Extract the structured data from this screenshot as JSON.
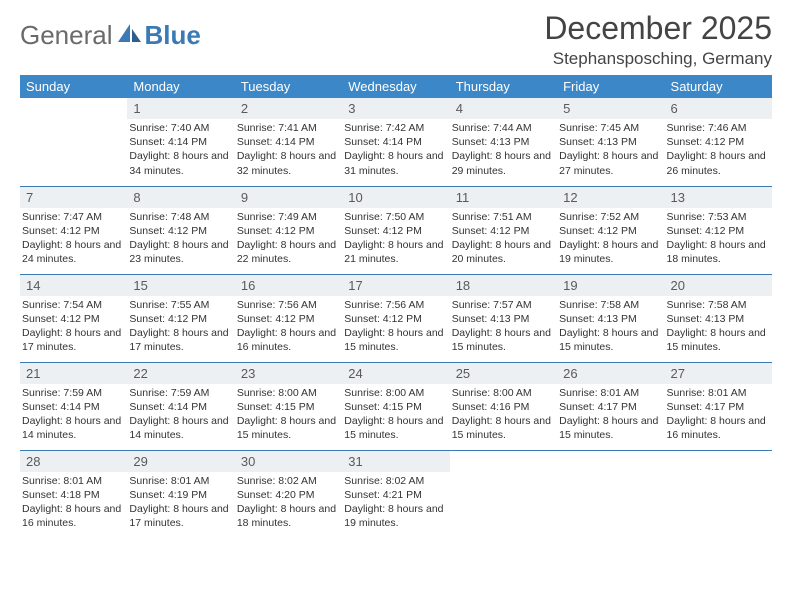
{
  "logo": {
    "part1": "General",
    "part2": "Blue"
  },
  "title": "December 2025",
  "location": "Stephansposching, Germany",
  "header_bg": "#3b87c8",
  "header_text_color": "#ffffff",
  "daynum_bg": "#edf0f2",
  "row_border_color": "#3b7ab5",
  "days_of_week": [
    "Sunday",
    "Monday",
    "Tuesday",
    "Wednesday",
    "Thursday",
    "Friday",
    "Saturday"
  ],
  "font_family": "Arial, Helvetica, sans-serif",
  "title_fontsize": 32,
  "location_fontsize": 17,
  "cell_fontsize": 10.5,
  "weeks": [
    [
      null,
      {
        "n": "1",
        "sr": "Sunrise: 7:40 AM",
        "ss": "Sunset: 4:14 PM",
        "dl": "Daylight: 8 hours and 34 minutes."
      },
      {
        "n": "2",
        "sr": "Sunrise: 7:41 AM",
        "ss": "Sunset: 4:14 PM",
        "dl": "Daylight: 8 hours and 32 minutes."
      },
      {
        "n": "3",
        "sr": "Sunrise: 7:42 AM",
        "ss": "Sunset: 4:14 PM",
        "dl": "Daylight: 8 hours and 31 minutes."
      },
      {
        "n": "4",
        "sr": "Sunrise: 7:44 AM",
        "ss": "Sunset: 4:13 PM",
        "dl": "Daylight: 8 hours and 29 minutes."
      },
      {
        "n": "5",
        "sr": "Sunrise: 7:45 AM",
        "ss": "Sunset: 4:13 PM",
        "dl": "Daylight: 8 hours and 27 minutes."
      },
      {
        "n": "6",
        "sr": "Sunrise: 7:46 AM",
        "ss": "Sunset: 4:12 PM",
        "dl": "Daylight: 8 hours and 26 minutes."
      }
    ],
    [
      {
        "n": "7",
        "sr": "Sunrise: 7:47 AM",
        "ss": "Sunset: 4:12 PM",
        "dl": "Daylight: 8 hours and 24 minutes."
      },
      {
        "n": "8",
        "sr": "Sunrise: 7:48 AM",
        "ss": "Sunset: 4:12 PM",
        "dl": "Daylight: 8 hours and 23 minutes."
      },
      {
        "n": "9",
        "sr": "Sunrise: 7:49 AM",
        "ss": "Sunset: 4:12 PM",
        "dl": "Daylight: 8 hours and 22 minutes."
      },
      {
        "n": "10",
        "sr": "Sunrise: 7:50 AM",
        "ss": "Sunset: 4:12 PM",
        "dl": "Daylight: 8 hours and 21 minutes."
      },
      {
        "n": "11",
        "sr": "Sunrise: 7:51 AM",
        "ss": "Sunset: 4:12 PM",
        "dl": "Daylight: 8 hours and 20 minutes."
      },
      {
        "n": "12",
        "sr": "Sunrise: 7:52 AM",
        "ss": "Sunset: 4:12 PM",
        "dl": "Daylight: 8 hours and 19 minutes."
      },
      {
        "n": "13",
        "sr": "Sunrise: 7:53 AM",
        "ss": "Sunset: 4:12 PM",
        "dl": "Daylight: 8 hours and 18 minutes."
      }
    ],
    [
      {
        "n": "14",
        "sr": "Sunrise: 7:54 AM",
        "ss": "Sunset: 4:12 PM",
        "dl": "Daylight: 8 hours and 17 minutes."
      },
      {
        "n": "15",
        "sr": "Sunrise: 7:55 AM",
        "ss": "Sunset: 4:12 PM",
        "dl": "Daylight: 8 hours and 17 minutes."
      },
      {
        "n": "16",
        "sr": "Sunrise: 7:56 AM",
        "ss": "Sunset: 4:12 PM",
        "dl": "Daylight: 8 hours and 16 minutes."
      },
      {
        "n": "17",
        "sr": "Sunrise: 7:56 AM",
        "ss": "Sunset: 4:12 PM",
        "dl": "Daylight: 8 hours and 15 minutes."
      },
      {
        "n": "18",
        "sr": "Sunrise: 7:57 AM",
        "ss": "Sunset: 4:13 PM",
        "dl": "Daylight: 8 hours and 15 minutes."
      },
      {
        "n": "19",
        "sr": "Sunrise: 7:58 AM",
        "ss": "Sunset: 4:13 PM",
        "dl": "Daylight: 8 hours and 15 minutes."
      },
      {
        "n": "20",
        "sr": "Sunrise: 7:58 AM",
        "ss": "Sunset: 4:13 PM",
        "dl": "Daylight: 8 hours and 15 minutes."
      }
    ],
    [
      {
        "n": "21",
        "sr": "Sunrise: 7:59 AM",
        "ss": "Sunset: 4:14 PM",
        "dl": "Daylight: 8 hours and 14 minutes."
      },
      {
        "n": "22",
        "sr": "Sunrise: 7:59 AM",
        "ss": "Sunset: 4:14 PM",
        "dl": "Daylight: 8 hours and 14 minutes."
      },
      {
        "n": "23",
        "sr": "Sunrise: 8:00 AM",
        "ss": "Sunset: 4:15 PM",
        "dl": "Daylight: 8 hours and 15 minutes."
      },
      {
        "n": "24",
        "sr": "Sunrise: 8:00 AM",
        "ss": "Sunset: 4:15 PM",
        "dl": "Daylight: 8 hours and 15 minutes."
      },
      {
        "n": "25",
        "sr": "Sunrise: 8:00 AM",
        "ss": "Sunset: 4:16 PM",
        "dl": "Daylight: 8 hours and 15 minutes."
      },
      {
        "n": "26",
        "sr": "Sunrise: 8:01 AM",
        "ss": "Sunset: 4:17 PM",
        "dl": "Daylight: 8 hours and 15 minutes."
      },
      {
        "n": "27",
        "sr": "Sunrise: 8:01 AM",
        "ss": "Sunset: 4:17 PM",
        "dl": "Daylight: 8 hours and 16 minutes."
      }
    ],
    [
      {
        "n": "28",
        "sr": "Sunrise: 8:01 AM",
        "ss": "Sunset: 4:18 PM",
        "dl": "Daylight: 8 hours and 16 minutes."
      },
      {
        "n": "29",
        "sr": "Sunrise: 8:01 AM",
        "ss": "Sunset: 4:19 PM",
        "dl": "Daylight: 8 hours and 17 minutes."
      },
      {
        "n": "30",
        "sr": "Sunrise: 8:02 AM",
        "ss": "Sunset: 4:20 PM",
        "dl": "Daylight: 8 hours and 18 minutes."
      },
      {
        "n": "31",
        "sr": "Sunrise: 8:02 AM",
        "ss": "Sunset: 4:21 PM",
        "dl": "Daylight: 8 hours and 19 minutes."
      },
      null,
      null,
      null
    ]
  ]
}
